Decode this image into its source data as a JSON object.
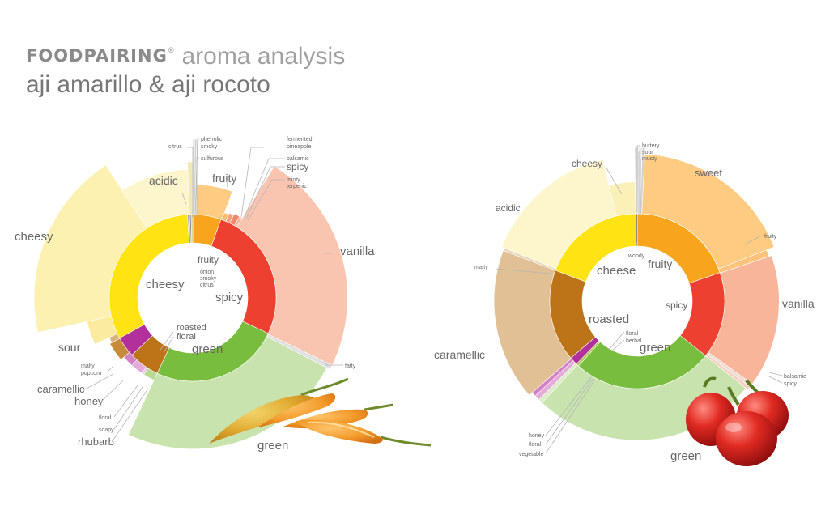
{
  "header": {
    "logo": "FOODPAIRING",
    "logo_mark": "®",
    "subtitle": "aroma analysis",
    "title": "aji amarillo & aji rocoto"
  },
  "chart_data": [
    {
      "type": "sunburst",
      "inner_ring": [
        {
          "name": "fruity",
          "share": 5.5,
          "color": "#f8a51d"
        },
        {
          "name": "spicy",
          "share": 26.5,
          "color": "#ee4030"
        },
        {
          "name": "green",
          "share": 25.0,
          "color": "#79bd3f"
        },
        {
          "name": "roasted",
          "share": 6.0,
          "color": "#bd7418"
        },
        {
          "name": "floral",
          "share": 4.0,
          "color": "#b1309b"
        },
        {
          "name": "cheesy",
          "share": 32.0,
          "color": "#ffe313"
        },
        {
          "name": "onion",
          "share": 0.4,
          "color": "#9aa1a6"
        },
        {
          "name": "smoky",
          "share": 0.3,
          "color": "#8c8c8c"
        },
        {
          "name": "citrus",
          "share": 0.3,
          "color": "#d8c75a"
        }
      ],
      "outer_ring": [
        {
          "name": "phenolic",
          "share": 0.2,
          "reach": 1.0,
          "color": "#d7d7d7"
        },
        {
          "name": "smoky",
          "share": 0.2,
          "reach": 1.0,
          "color": "#cfcfcf"
        },
        {
          "name": "sulfurous",
          "share": 0.2,
          "reach": 1.0,
          "color": "#e2e2e2"
        },
        {
          "name": "fruity",
          "share": 5.0,
          "reach": 0.4,
          "color": "#fdcb82"
        },
        {
          "name": "fermented pineapple",
          "share": 0.8,
          "reach": 0.1,
          "color": "#fbbd74"
        },
        {
          "name": "balsamic",
          "share": 0.8,
          "reach": 0.12,
          "color": "#f4a07f"
        },
        {
          "name": "spicy",
          "share": 1.0,
          "reach": 0.14,
          "color": "#f08a6a"
        },
        {
          "name": "minty terpenic",
          "share": 0.5,
          "reach": 0.14,
          "color": "#f6b29b"
        },
        {
          "name": "vanilla",
          "share": 23.0,
          "reach": 0.95,
          "color": "#f9c5b0"
        },
        {
          "name": "fatty",
          "share": 0.5,
          "reach": 0.95,
          "color": "#e0e0e0"
        },
        {
          "name": "green",
          "share": 24.0,
          "reach": 0.9,
          "color": "#c8e3ad"
        },
        {
          "name": "rhubarb",
          "share": 2.0,
          "reach": 0.1,
          "color": "#b7da93"
        },
        {
          "name": "soapy",
          "share": 0.4,
          "reach": 0.1,
          "color": "#e9c6e3"
        },
        {
          "name": "floral",
          "share": 2.2,
          "reach": 0.1,
          "color": "#e5a9da"
        },
        {
          "name": "honey",
          "share": 2.0,
          "reach": 0.1,
          "color": "#d281c7"
        },
        {
          "name": "caramellic",
          "share": 3.2,
          "reach": 0.15,
          "color": "#c78a38"
        },
        {
          "name": "malty popcorn",
          "share": 1.0,
          "reach": 0.12,
          "color": "#dab27c"
        },
        {
          "name": "sour",
          "share": 3.5,
          "reach": 0.33,
          "color": "#fbeb9e"
        },
        {
          "name": "cheesy",
          "share": 19.0,
          "reach": 1.0,
          "color": "#fcf1b0"
        },
        {
          "name": "acidic",
          "share": 8.5,
          "reach": 0.6,
          "color": "#fdf6cd"
        },
        {
          "name": "citrus",
          "share": 0.6,
          "reach": 0.7,
          "color": "#f1e8b4"
        }
      ],
      "inner_labels": [
        "cheesy",
        "fruity",
        "onion",
        "smoky",
        "citrus",
        "spicy",
        "roasted",
        "floral",
        "green"
      ],
      "outer_labels": [
        "citrus",
        "phenolic",
        "smoky",
        "sulfurous",
        "fruity",
        "fermented",
        "pineapple",
        "balsamic",
        "spicy",
        "minty",
        "terpenic",
        "acidic",
        "cheesy",
        "vanilla",
        "sour",
        "fatty",
        "malty",
        "popcorn",
        "caramellic",
        "honey",
        "floral",
        "soapy",
        "rhubarb",
        "green"
      ]
    },
    {
      "type": "sunburst",
      "inner_ring": [
        {
          "name": "woody",
          "share": 0.3,
          "color": "#5a5a5a"
        },
        {
          "name": "fruity",
          "share": 19.7,
          "color": "#f8a51d"
        },
        {
          "name": "spicy",
          "share": 16.0,
          "color": "#ee4030"
        },
        {
          "name": "green",
          "share": 26.0,
          "color": "#79bd3f"
        },
        {
          "name": "herbal",
          "share": 0.5,
          "color": "#a8c84a"
        },
        {
          "name": "floral",
          "share": 1.5,
          "color": "#b1309b"
        },
        {
          "name": "roasted",
          "share": 17.0,
          "color": "#bd7418"
        },
        {
          "name": "cheese",
          "share": 19.0,
          "color": "#ffe313"
        }
      ],
      "outer_ring": [
        {
          "name": "buttery",
          "share": 0.4,
          "reach": 1.0,
          "color": "#dedede"
        },
        {
          "name": "sour",
          "share": 0.4,
          "reach": 1.0,
          "color": "#e8e8e8"
        },
        {
          "name": "musty",
          "share": 0.3,
          "reach": 1.0,
          "color": "#d2d2d2"
        },
        {
          "name": "sweet",
          "share": 18.0,
          "reach": 0.9,
          "color": "#fdcb82"
        },
        {
          "name": "fruity",
          "share": 0.8,
          "reach": 0.78,
          "color": "#fbc47a"
        },
        {
          "name": "vanilla",
          "share": 15.0,
          "reach": 0.82,
          "color": "#f9b59a"
        },
        {
          "name": "balsamic",
          "share": 0.4,
          "reach": 0.82,
          "color": "#eedbd2"
        },
        {
          "name": "spicy",
          "share": 0.4,
          "reach": 0.82,
          "color": "#f6cfc0"
        },
        {
          "name": "green",
          "share": 26.0,
          "reach": 0.78,
          "color": "#c8e3ad"
        },
        {
          "name": "vegetable",
          "share": 0.5,
          "reach": 0.78,
          "color": "#dcecc8"
        },
        {
          "name": "floral",
          "share": 0.6,
          "reach": 0.78,
          "color": "#e5a9da"
        },
        {
          "name": "honey",
          "share": 0.5,
          "reach": 0.78,
          "color": "#d281c7"
        },
        {
          "name": "caramellic",
          "share": 17.0,
          "reach": 0.84,
          "color": "#e1c095"
        },
        {
          "name": "malty",
          "share": 0.3,
          "reach": 0.84,
          "color": "#e8d7bf"
        },
        {
          "name": "acidic",
          "share": 15.0,
          "reach": 0.88,
          "color": "#fdf6cd"
        },
        {
          "name": "cheesy",
          "share": 3.5,
          "reach": 0.48,
          "color": "#faf0b8"
        }
      ],
      "inner_labels": [
        "cheese",
        "woody",
        "fruity",
        "spicy",
        "roasted",
        "floral",
        "herbal",
        "green"
      ],
      "outer_labels": [
        "buttery",
        "sour",
        "musty",
        "cheesy",
        "sweet",
        "acidic",
        "fruity",
        "malty",
        "vanilla",
        "caramellic",
        "balsamic",
        "spicy",
        "honey",
        "floral",
        "vegetable",
        "green"
      ]
    }
  ]
}
